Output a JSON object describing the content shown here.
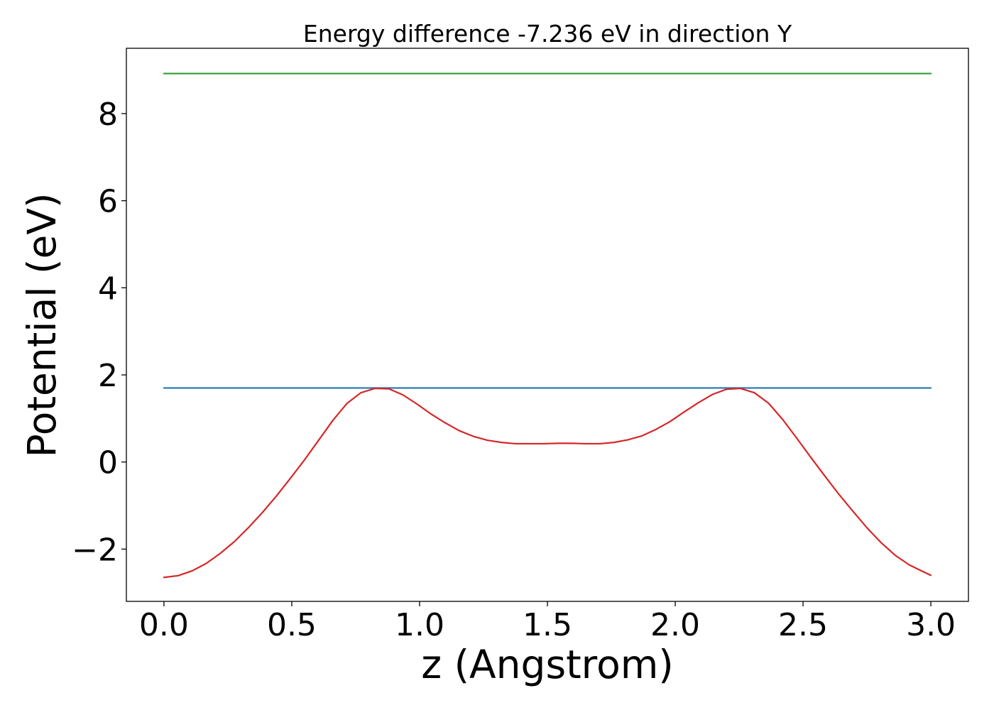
{
  "chart_data": {
    "type": "line",
    "title": "Energy difference -7.236 eV in direction Y",
    "xlabel": "z (Angstrom)",
    "ylabel": "Potential (eV)",
    "xlim": [
      -0.147,
      3.147
    ],
    "ylim": [
      -3.2,
      9.5
    ],
    "grid": false,
    "xticks": [
      0.0,
      0.5,
      1.0,
      1.5,
      2.0,
      2.5,
      3.0
    ],
    "xtick_labels": [
      "0.0",
      "0.5",
      "1.0",
      "1.5",
      "2.0",
      "2.5",
      "3.0"
    ],
    "yticks": [
      -2,
      0,
      2,
      4,
      6,
      8
    ],
    "ytick_labels": [
      "−2",
      "0",
      "2",
      "4",
      "6",
      "8"
    ],
    "series": [
      {
        "color": "#2ca02c",
        "x": [
          0.0,
          3.0
        ],
        "y": [
          8.92,
          8.92
        ]
      },
      {
        "color": "#1f77b4",
        "x": [
          0.0,
          3.0
        ],
        "y": [
          1.7,
          1.7
        ]
      },
      {
        "color": "#d62728",
        "x": [
          0.0,
          0.055,
          0.11,
          0.165,
          0.22,
          0.275,
          0.33,
          0.385,
          0.44,
          0.495,
          0.55,
          0.605,
          0.66,
          0.715,
          0.77,
          0.825,
          0.88,
          0.935,
          0.99,
          1.045,
          1.1,
          1.155,
          1.21,
          1.265,
          1.32,
          1.375,
          1.43,
          1.485,
          1.54,
          1.595,
          1.65,
          1.705,
          1.76,
          1.815,
          1.87,
          1.925,
          1.98,
          2.035,
          2.09,
          2.145,
          2.2,
          2.255,
          2.31,
          2.365,
          2.42,
          2.475,
          2.53,
          2.585,
          2.64,
          2.695,
          2.75,
          2.805,
          2.86,
          2.915,
          2.97,
          3.0
        ],
        "y": [
          -2.65,
          -2.61,
          -2.5,
          -2.33,
          -2.1,
          -1.83,
          -1.51,
          -1.16,
          -0.78,
          -0.37,
          0.05,
          0.5,
          0.95,
          1.34,
          1.59,
          1.69,
          1.68,
          1.54,
          1.33,
          1.1,
          0.9,
          0.72,
          0.59,
          0.5,
          0.45,
          0.42,
          0.42,
          0.42,
          0.43,
          0.43,
          0.42,
          0.42,
          0.45,
          0.51,
          0.6,
          0.75,
          0.93,
          1.15,
          1.36,
          1.55,
          1.67,
          1.69,
          1.59,
          1.35,
          0.98,
          0.55,
          0.11,
          -0.32,
          -0.74,
          -1.13,
          -1.51,
          -1.85,
          -2.14,
          -2.36,
          -2.52,
          -2.6
        ]
      }
    ]
  }
}
